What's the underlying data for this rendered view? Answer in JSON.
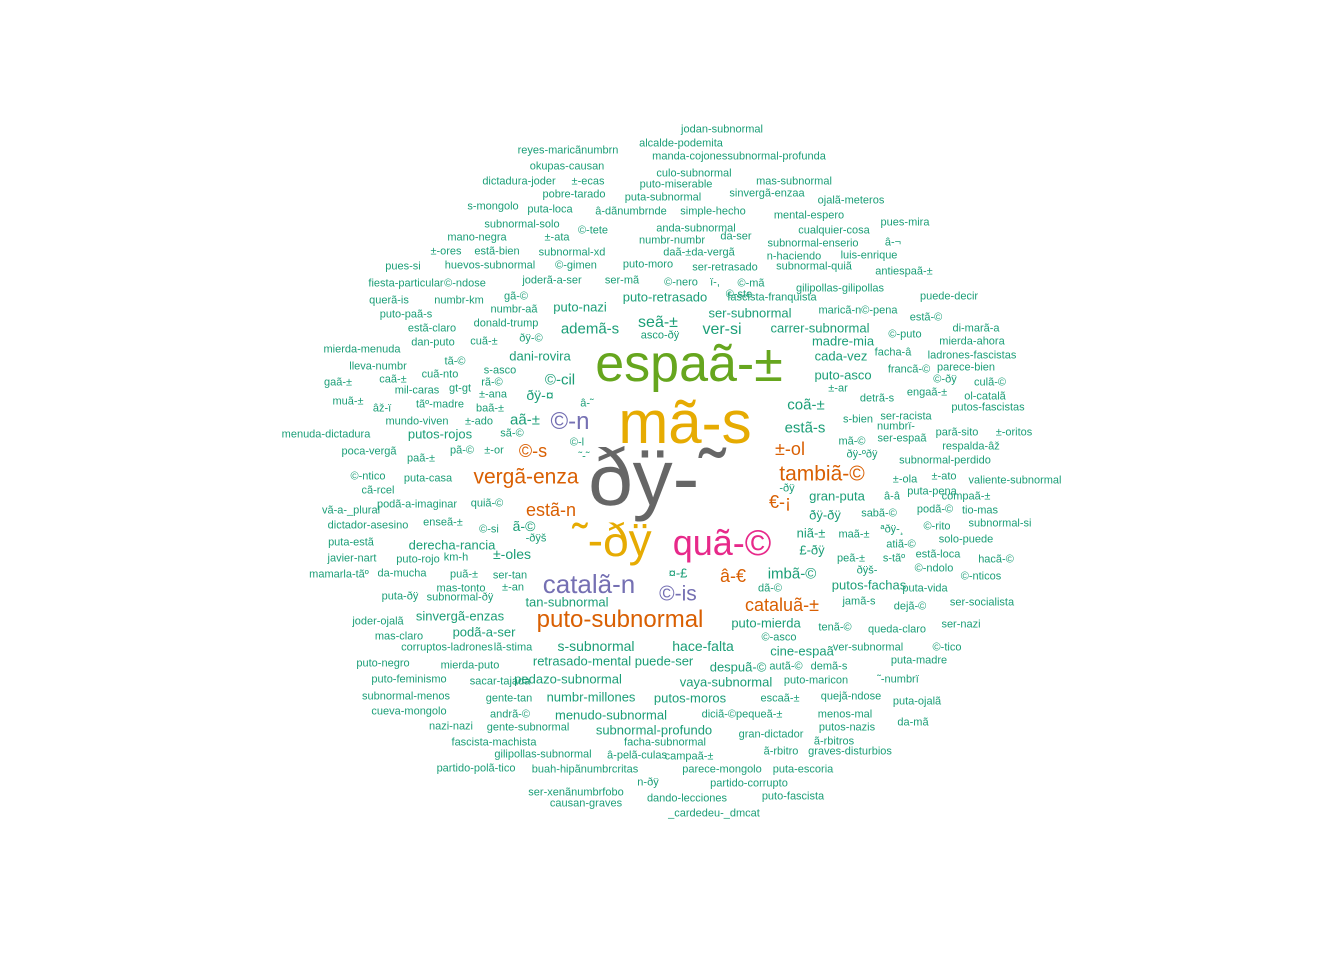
{
  "colors": {
    "c1": "#1b9e77",
    "c2": "#d95f02",
    "c3": "#7570b3",
    "c4": "#e7298a",
    "c5": "#66a61e",
    "c6": "#e6ab02",
    "c7": "#666666"
  },
  "words": [
    {
      "text": "ðÿ-˜",
      "color": "c7"
    },
    {
      "text": "mã-s",
      "color": "c6"
    },
    {
      "text": "espaã-±",
      "color": "c5"
    },
    {
      "text": "˜-ðÿ",
      "color": "c6"
    },
    {
      "text": "quã-©",
      "color": "c4"
    },
    {
      "text": "catalã-n",
      "color": "c3"
    },
    {
      "text": "puto-subnormal",
      "color": "c2"
    },
    {
      "text": "©-n",
      "color": "c3"
    },
    {
      "text": "vergã-enza",
      "color": "c2"
    },
    {
      "text": "tambiã-©",
      "color": "c2"
    },
    {
      "text": "©-is",
      "color": "c3"
    },
    {
      "text": "cataluã-±",
      "color": "c2"
    },
    {
      "text": "±-ol",
      "color": "c2"
    },
    {
      "text": "â-€",
      "color": "c2"
    },
    {
      "text": "estã-n",
      "color": "c2"
    },
    {
      "text": "©-s",
      "color": "c2"
    },
    {
      "text": "€-¡",
      "color": "c2"
    },
    {
      "text": "ver-si",
      "color": "c1"
    },
    {
      "text": "seã-±",
      "color": "c1"
    },
    {
      "text": "ademã-s",
      "color": "c1"
    },
    {
      "text": "estã-s",
      "color": "c1"
    },
    {
      "text": "coã-±",
      "color": "c1"
    },
    {
      "text": "aã-±",
      "color": "c1"
    },
    {
      "text": "imbã-©",
      "color": "c1"
    },
    {
      "text": "s-subnormal",
      "color": "c1"
    },
    {
      "text": "©-cil",
      "color": "c1"
    },
    {
      "text": "ðÿ-¤",
      "color": "c1"
    },
    {
      "text": "puto-nazi",
      "color": "c1"
    },
    {
      "text": "puto-retrasado",
      "color": "c1"
    },
    {
      "text": "ser-subnormal",
      "color": "c1"
    },
    {
      "text": "carrer-subnormal",
      "color": "c1"
    },
    {
      "text": "gran-puta",
      "color": "c1"
    },
    {
      "text": "ðÿ-ðÿ",
      "color": "c1"
    },
    {
      "text": "niã-±",
      "color": "c1"
    },
    {
      "text": "±-oles",
      "color": "c1"
    },
    {
      "text": "ã-©",
      "color": "c1"
    },
    {
      "text": "¤-£",
      "color": "c1"
    },
    {
      "text": "£-ðÿ",
      "color": "c1"
    },
    {
      "text": "hace-falta",
      "color": "c1"
    },
    {
      "text": "puto-mierda",
      "color": "c1"
    },
    {
      "text": "puto-asco",
      "color": "c1"
    },
    {
      "text": "dani-rovira",
      "color": "c1"
    },
    {
      "text": "derecha-rancia",
      "color": "c1"
    },
    {
      "text": "putos-fachas",
      "color": "c1"
    },
    {
      "text": "vaya-subnormal",
      "color": "c1"
    },
    {
      "text": "pedazo-subnormal",
      "color": "c1"
    },
    {
      "text": "retrasado-mental",
      "color": "c1"
    },
    {
      "text": "puede-ser",
      "color": "c1"
    },
    {
      "text": "despuã-©",
      "color": "c1"
    },
    {
      "text": "tan-subnormal",
      "color": "c1"
    },
    {
      "text": "sinvergã-enzas",
      "color": "c1"
    },
    {
      "text": "podã-a-ser",
      "color": "c1"
    },
    {
      "text": "cine-espaã",
      "color": "c1"
    },
    {
      "text": "menudo-subnormal",
      "color": "c1"
    },
    {
      "text": "numbr-millones",
      "color": "c1"
    },
    {
      "text": "putos-moros",
      "color": "c1"
    },
    {
      "text": "subnormal-profundo",
      "color": "c1"
    },
    {
      "text": "putos-rojos",
      "color": "c1"
    },
    {
      "text": "madre-mia",
      "color": "c1"
    },
    {
      "text": "cada-vez",
      "color": "c1"
    },
    {
      "text": "jodan-subnormal",
      "color": "c1"
    },
    {
      "text": "alcalde-podemita",
      "color": "c1"
    },
    {
      "text": "reyes-maricãnumbrn",
      "color": "c1"
    },
    {
      "text": "manda-cojonessubnormal-profunda",
      "color": "c1"
    },
    {
      "text": "okupas-causan",
      "color": "c1"
    },
    {
      "text": "culo-subnormal",
      "color": "c1"
    },
    {
      "text": "dictadura-joder",
      "color": "c1"
    },
    {
      "text": "±-ecas",
      "color": "c1"
    },
    {
      "text": "puto-miserable",
      "color": "c1"
    },
    {
      "text": "mas-subnormal",
      "color": "c1"
    },
    {
      "text": "pobre-tarado",
      "color": "c1"
    },
    {
      "text": "puta-subnormal",
      "color": "c1"
    },
    {
      "text": "sinvergã-enzaa",
      "color": "c1"
    },
    {
      "text": "ojalã-meteros",
      "color": "c1"
    },
    {
      "text": "s-mongolo",
      "color": "c1"
    },
    {
      "text": "puta-loca",
      "color": "c1"
    },
    {
      "text": "â-dãnumbrnde",
      "color": "c1"
    },
    {
      "text": "simple-hecho",
      "color": "c1"
    },
    {
      "text": "mental-espero",
      "color": "c1"
    },
    {
      "text": "subnormal-solo",
      "color": "c1"
    },
    {
      "text": "©-tete",
      "color": "c1"
    },
    {
      "text": "anda-subnormal",
      "color": "c1"
    },
    {
      "text": "cualquier-cosa",
      "color": "c1"
    },
    {
      "text": "pues-mira",
      "color": "c1"
    },
    {
      "text": "mano-negra",
      "color": "c1"
    },
    {
      "text": "±-ata",
      "color": "c1"
    },
    {
      "text": "numbr-numbr",
      "color": "c1"
    },
    {
      "text": "da-ser",
      "color": "c1"
    },
    {
      "text": "subnormal-enserio",
      "color": "c1"
    },
    {
      "text": "â-¬",
      "color": "c1"
    },
    {
      "text": "±-ores",
      "color": "c1"
    },
    {
      "text": "estã-bien",
      "color": "c1"
    },
    {
      "text": "subnormal-xd",
      "color": "c1"
    },
    {
      "text": "daã-±da-vergã",
      "color": "c1"
    },
    {
      "text": "n-haciendo",
      "color": "c1"
    },
    {
      "text": "luis-enrique",
      "color": "c1"
    },
    {
      "text": "pues-si",
      "color": "c1"
    },
    {
      "text": "huevos-subnormal",
      "color": "c1"
    },
    {
      "text": "©-gimen",
      "color": "c1"
    },
    {
      "text": "puto-moro",
      "color": "c1"
    },
    {
      "text": "ser-retrasado",
      "color": "c1"
    },
    {
      "text": "subnormal-quiã",
      "color": "c1"
    },
    {
      "text": "antiespaã-±",
      "color": "c1"
    },
    {
      "text": "fiesta-particular",
      "color": "c1"
    },
    {
      "text": "©-ndose",
      "color": "c1"
    },
    {
      "text": "joderã-a-ser",
      "color": "c1"
    },
    {
      "text": "ser-mã",
      "color": "c1"
    },
    {
      "text": "©-nero",
      "color": "c1"
    },
    {
      "text": "ï-,",
      "color": "c1"
    },
    {
      "text": "©-mã",
      "color": "c1"
    },
    {
      "text": "gilipollas-gilipollas",
      "color": "c1"
    },
    {
      "text": "puede-decir",
      "color": "c1"
    },
    {
      "text": "querã-is",
      "color": "c1"
    },
    {
      "text": "numbr-km",
      "color": "c1"
    },
    {
      "text": "gã-©",
      "color": "c1"
    },
    {
      "text": "©-ste",
      "color": "c1"
    },
    {
      "text": "fascista-franquista",
      "color": "c1"
    },
    {
      "text": "puto-paã-s",
      "color": "c1"
    },
    {
      "text": "numbr-aã",
      "color": "c1"
    },
    {
      "text": "maricã-n©-pena",
      "color": "c1"
    },
    {
      "text": "estã-©",
      "color": "c1"
    },
    {
      "text": "estã-claro",
      "color": "c1"
    },
    {
      "text": "donald-trump",
      "color": "c1"
    },
    {
      "text": "©-puto",
      "color": "c1"
    },
    {
      "text": "di-marã-a",
      "color": "c1"
    },
    {
      "text": "dan-puto",
      "color": "c1"
    },
    {
      "text": "cuã-±",
      "color": "c1"
    },
    {
      "text": "ðÿ-©",
      "color": "c1"
    },
    {
      "text": "asco-ðÿ",
      "color": "c1"
    },
    {
      "text": "mierda-ahora",
      "color": "c1"
    },
    {
      "text": "mierda-menuda",
      "color": "c1"
    },
    {
      "text": "facha-â",
      "color": "c1"
    },
    {
      "text": "ladrones-fascistas",
      "color": "c1"
    },
    {
      "text": "tã-©",
      "color": "c1"
    },
    {
      "text": "lleva-numbr",
      "color": "c1"
    },
    {
      "text": "s-asco",
      "color": "c1"
    },
    {
      "text": "francã-©",
      "color": "c1"
    },
    {
      "text": "©-ðÿ",
      "color": "c1"
    },
    {
      "text": "cuã-nto",
      "color": "c1"
    },
    {
      "text": "gaã-±",
      "color": "c1"
    },
    {
      "text": "caã-±",
      "color": "c1"
    },
    {
      "text": "rã-©",
      "color": "c1"
    },
    {
      "text": "culã-©",
      "color": "c1"
    },
    {
      "text": "mil-caras",
      "color": "c1"
    },
    {
      "text": "gt-gt",
      "color": "c1"
    },
    {
      "text": "±-ar",
      "color": "c1"
    },
    {
      "text": "engaã-±",
      "color": "c1"
    },
    {
      "text": "ol-catalã",
      "color": "c1"
    },
    {
      "text": "muã-±",
      "color": "c1"
    },
    {
      "text": "±-ana",
      "color": "c1"
    },
    {
      "text": "detrã-s",
      "color": "c1"
    },
    {
      "text": "âž-ï",
      "color": "c1"
    },
    {
      "text": "tãº-madre",
      "color": "c1"
    },
    {
      "text": "baã-±",
      "color": "c1"
    },
    {
      "text": "â-˜",
      "color": "c1"
    },
    {
      "text": "putos-fascistas",
      "color": "c1"
    },
    {
      "text": "mundo-viven",
      "color": "c1"
    },
    {
      "text": "±-ado",
      "color": "c1"
    },
    {
      "text": "s-bien",
      "color": "c1"
    },
    {
      "text": "ser-racista",
      "color": "c1"
    },
    {
      "text": "menuda-dictadura",
      "color": "c1"
    },
    {
      "text": "sã-©",
      "color": "c1"
    },
    {
      "text": "mã-©",
      "color": "c1"
    },
    {
      "text": "numbrï-",
      "color": "c1"
    },
    {
      "text": "parã-sito",
      "color": "c1"
    },
    {
      "text": "±-oritos",
      "color": "c1"
    },
    {
      "text": "ser-espaã",
      "color": "c1"
    },
    {
      "text": "respalda-âž",
      "color": "c1"
    },
    {
      "text": "©-l",
      "color": "c1"
    },
    {
      "text": "ðÿ-ºðÿ",
      "color": "c1"
    },
    {
      "text": "poca-vergã",
      "color": "c1"
    },
    {
      "text": "paã-±",
      "color": "c1"
    },
    {
      "text": "pã-©",
      "color": "c1"
    },
    {
      "text": "±-or",
      "color": "c1"
    },
    {
      "text": "˜-˜",
      "color": "c1"
    },
    {
      "text": "subnormal-perdido",
      "color": "c1"
    },
    {
      "text": "©-ntico",
      "color": "c1"
    },
    {
      "text": "puta-casa",
      "color": "c1"
    },
    {
      "text": "±-ola",
      "color": "c1"
    },
    {
      "text": "±-ato",
      "color": "c1"
    },
    {
      "text": "valiente-subnormal",
      "color": "c1"
    },
    {
      "text": "cã-rcel",
      "color": "c1"
    },
    {
      "text": "-ðÿ",
      "color": "c1"
    },
    {
      "text": "â-â",
      "color": "c1"
    },
    {
      "text": "puta-pena",
      "color": "c1"
    },
    {
      "text": "compaã-±",
      "color": "c1"
    },
    {
      "text": "vã-a-_plural",
      "color": "c1"
    },
    {
      "text": "podã-a-imaginar",
      "color": "c1"
    },
    {
      "text": "quiã-©",
      "color": "c1"
    },
    {
      "text": "sabã-©",
      "color": "c1"
    },
    {
      "text": "podã-©",
      "color": "c1"
    },
    {
      "text": "tio-mas",
      "color": "c1"
    },
    {
      "text": "dictador-asesino",
      "color": "c1"
    },
    {
      "text": "enseã-±",
      "color": "c1"
    },
    {
      "text": "©-si",
      "color": "c1"
    },
    {
      "text": "maã-±",
      "color": "c1"
    },
    {
      "text": "ªðÿ-¸",
      "color": "c1"
    },
    {
      "text": "©-rito",
      "color": "c1"
    },
    {
      "text": "subnormal-si",
      "color": "c1"
    },
    {
      "text": "-ðÿš",
      "color": "c1"
    },
    {
      "text": "puta-estã",
      "color": "c1"
    },
    {
      "text": "atiã-©",
      "color": "c1"
    },
    {
      "text": "solo-puede",
      "color": "c1"
    },
    {
      "text": "javier-nart",
      "color": "c1"
    },
    {
      "text": "puto-rojo",
      "color": "c1"
    },
    {
      "text": "km-h",
      "color": "c1"
    },
    {
      "text": "peã-±",
      "color": "c1"
    },
    {
      "text": "s-tãº",
      "color": "c1"
    },
    {
      "text": "estã-loca",
      "color": "c1"
    },
    {
      "text": "hacã-©",
      "color": "c1"
    },
    {
      "text": "mamarla-tãº",
      "color": "c1"
    },
    {
      "text": "da-mucha",
      "color": "c1"
    },
    {
      "text": "puã-±",
      "color": "c1"
    },
    {
      "text": "ser-tan",
      "color": "c1"
    },
    {
      "text": "©-ndolo",
      "color": "c1"
    },
    {
      "text": "ðÿš-",
      "color": "c1"
    },
    {
      "text": "©-nticos",
      "color": "c1"
    },
    {
      "text": "mas-tonto",
      "color": "c1"
    },
    {
      "text": "±-an",
      "color": "c1"
    },
    {
      "text": "dã-©",
      "color": "c1"
    },
    {
      "text": "puta-vida",
      "color": "c1"
    },
    {
      "text": "puta-ðÿ",
      "color": "c1"
    },
    {
      "text": "subnormal-ðÿ",
      "color": "c1"
    },
    {
      "text": "jamã-s",
      "color": "c1"
    },
    {
      "text": "dejã-©",
      "color": "c1"
    },
    {
      "text": "ser-socialista",
      "color": "c1"
    },
    {
      "text": "joder-ojalã",
      "color": "c1"
    },
    {
      "text": "tenã-©",
      "color": "c1"
    },
    {
      "text": "queda-claro",
      "color": "c1"
    },
    {
      "text": "ser-nazi",
      "color": "c1"
    },
    {
      "text": "mas-claro",
      "color": "c1"
    },
    {
      "text": "©-asco",
      "color": "c1"
    },
    {
      "text": "corruptos-ladrones",
      "color": "c1"
    },
    {
      "text": "lã-stima",
      "color": "c1"
    },
    {
      "text": "ver-subnormal",
      "color": "c1"
    },
    {
      "text": "©-tico",
      "color": "c1"
    },
    {
      "text": "puto-negro",
      "color": "c1"
    },
    {
      "text": "mierda-puto",
      "color": "c1"
    },
    {
      "text": "autã-©",
      "color": "c1"
    },
    {
      "text": "demã-s",
      "color": "c1"
    },
    {
      "text": "puta-madre",
      "color": "c1"
    },
    {
      "text": "puto-feminismo",
      "color": "c1"
    },
    {
      "text": "sacar-tajada",
      "color": "c1"
    },
    {
      "text": "puto-maricon",
      "color": "c1"
    },
    {
      "text": "˜-numbrï",
      "color": "c1"
    },
    {
      "text": "subnormal-menos",
      "color": "c1"
    },
    {
      "text": "gente-tan",
      "color": "c1"
    },
    {
      "text": "escaã-±",
      "color": "c1"
    },
    {
      "text": "quejã-ndose",
      "color": "c1"
    },
    {
      "text": "puta-ojalã",
      "color": "c1"
    },
    {
      "text": "cueva-mongolo",
      "color": "c1"
    },
    {
      "text": "andrã-©",
      "color": "c1"
    },
    {
      "text": "diciã-©pequeã-±",
      "color": "c1"
    },
    {
      "text": "menos-mal",
      "color": "c1"
    },
    {
      "text": "da-mã",
      "color": "c1"
    },
    {
      "text": "nazi-nazi",
      "color": "c1"
    },
    {
      "text": "gente-subnormal",
      "color": "c1"
    },
    {
      "text": "putos-nazis",
      "color": "c1"
    },
    {
      "text": "fascista-machista",
      "color": "c1"
    },
    {
      "text": "facha-subnormal",
      "color": "c1"
    },
    {
      "text": "gran-dictador",
      "color": "c1"
    },
    {
      "text": "ã-rbitros",
      "color": "c1"
    },
    {
      "text": "gilipollas-subnormal",
      "color": "c1"
    },
    {
      "text": "â-pelã-culas",
      "color": "c1"
    },
    {
      "text": "campaã-±",
      "color": "c1"
    },
    {
      "text": "ã-rbitro",
      "color": "c1"
    },
    {
      "text": "graves-disturbios",
      "color": "c1"
    },
    {
      "text": "partido-polã-tico",
      "color": "c1"
    },
    {
      "text": "buah-hipãnumbrcritas",
      "color": "c1"
    },
    {
      "text": "parece-mongolo",
      "color": "c1"
    },
    {
      "text": "puta-escoria",
      "color": "c1"
    },
    {
      "text": "n-ðÿ",
      "color": "c1"
    },
    {
      "text": "partido-corrupto",
      "color": "c1"
    },
    {
      "text": "ser-xenãnumbrfobo",
      "color": "c1"
    },
    {
      "text": "causan-graves",
      "color": "c1"
    },
    {
      "text": "dando-lecciones",
      "color": "c1"
    },
    {
      "text": "puto-fascista",
      "color": "c1"
    },
    {
      "text": "_cardedeu-_dmcat",
      "color": "c1"
    },
    {
      "text": "parece-bien",
      "color": "c1"
    }
  ]
}
